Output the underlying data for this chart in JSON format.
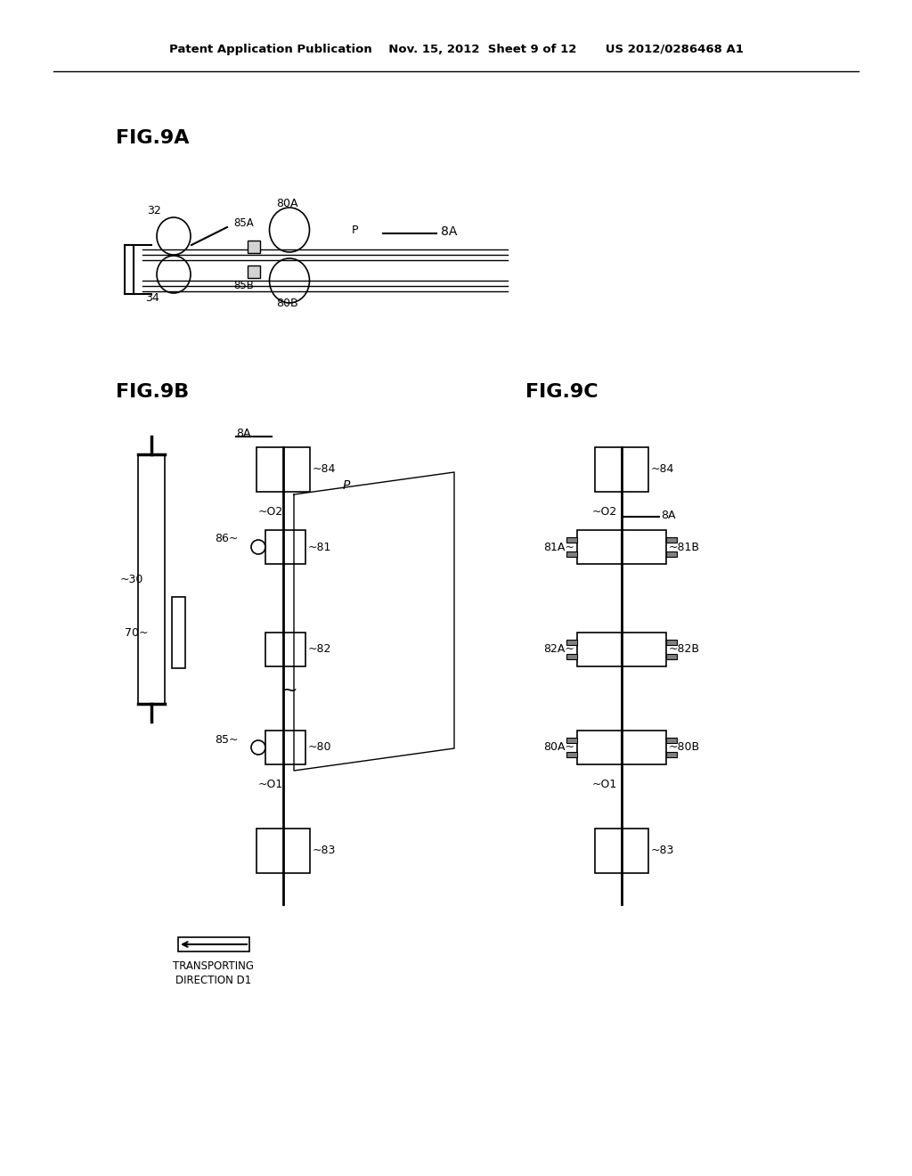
{
  "title_line": "Patent Application Publication    Nov. 15, 2012  Sheet 9 of 12       US 2012/0286468 A1",
  "bg_color": "#ffffff",
  "line_color": "#000000",
  "fig9a_label": "FIG.9A",
  "fig9b_label": "FIG.9B",
  "fig9c_label": "FIG.9C"
}
